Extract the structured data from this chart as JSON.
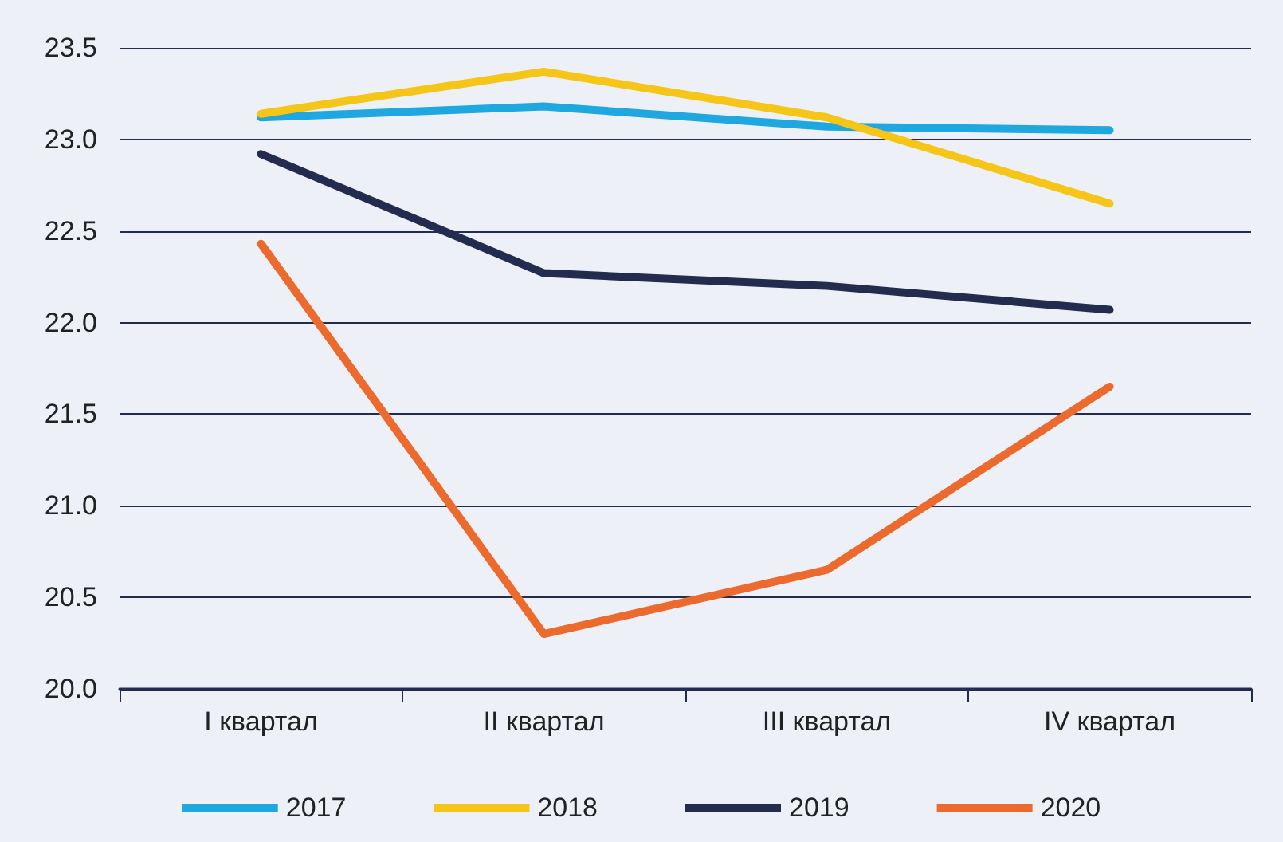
{
  "chart_data": {
    "type": "line",
    "categories": [
      "I квартал",
      "II квартал",
      "III квартал",
      "IV квартал"
    ],
    "series": [
      {
        "name": "2017",
        "color": "#1fa8e0",
        "values": [
          23.12,
          23.18,
          23.07,
          23.05
        ]
      },
      {
        "name": "2018",
        "color": "#f5c518",
        "values": [
          23.14,
          23.37,
          23.12,
          22.65
        ]
      },
      {
        "name": "2019",
        "color": "#232b4e",
        "values": [
          22.92,
          22.27,
          22.2,
          22.07
        ]
      },
      {
        "name": "2020",
        "color": "#ec6a2e",
        "values": [
          22.43,
          20.3,
          20.65,
          21.65
        ]
      }
    ],
    "ylim": [
      20,
      23.5
    ],
    "yticks": [
      {
        "value": 20,
        "label": "20.0"
      },
      20.5,
      {
        "value": 21,
        "label": "21.0"
      },
      21.5,
      {
        "value": 22,
        "label": "22.0"
      },
      22.5,
      {
        "value": 23,
        "label": "23.0"
      },
      23.5
    ],
    "grid": "y",
    "legend": "bottom",
    "marker": "none",
    "line_style": "solid"
  }
}
